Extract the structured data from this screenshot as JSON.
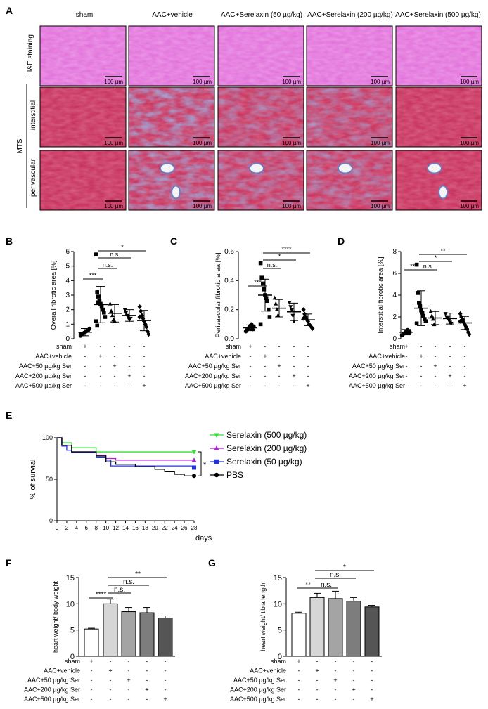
{
  "panel_a": {
    "label": "A",
    "columns": [
      "sham",
      "AAC+vehicle",
      "AAC+Serelaxin (50 µg/kg)",
      "AAC+Serelaxin (200 µg/kg)",
      "AAC+Serelaxin (500 µg/kg)"
    ],
    "row_he": "H&E staining",
    "row_group": "MTS",
    "row_interstitial": "interstitial",
    "row_perivascular": "perivascular",
    "scale_bar": "100 µm",
    "colors": {
      "he": "#e06ad8",
      "mts_red": "#c42a55",
      "mts_blue": "#5a86c8"
    }
  },
  "treatment_table": {
    "rows": [
      "sham",
      "AAC+vehicle",
      "AAC+50 µg/kg Ser",
      "AAC+200 µg/kg Ser",
      "AAC+500 µg/kg Ser"
    ],
    "marks": [
      [
        "+",
        "-",
        "-",
        "-",
        "-"
      ],
      [
        "-",
        "+",
        "-",
        "-",
        "-"
      ],
      [
        "-",
        "-",
        "+",
        "-",
        "-"
      ],
      [
        "-",
        "-",
        "-",
        "+",
        "-"
      ],
      [
        "-",
        "-",
        "-",
        "-",
        "+"
      ]
    ]
  },
  "chart_data": [
    {
      "panel": "B",
      "type": "scatter",
      "ylabel": "Overall fibrotic area [%]",
      "ylim": [
        0,
        6
      ],
      "yticks": [
        0,
        1,
        2,
        3,
        4,
        5,
        6
      ],
      "categories": [
        "sham",
        "AAC+vehicle",
        "AAC+50 µg/kg Ser",
        "AAC+200 µg/kg Ser",
        "AAC+500 µg/kg Ser"
      ],
      "marker_shapes": [
        "circle",
        "square",
        "triangle-up",
        "triangle-down",
        "diamond"
      ],
      "means": [
        0.45,
        2.35,
        1.75,
        1.6,
        1.25
      ],
      "sd": [
        0.25,
        1.25,
        0.6,
        0.4,
        0.7
      ],
      "points": [
        [
          0.2,
          0.3,
          0.35,
          0.4,
          0.45,
          0.5,
          0.55,
          0.6,
          0.7,
          0.3
        ],
        [
          5.8,
          3.2,
          2.9,
          2.6,
          2.4,
          2.2,
          2.0,
          1.8,
          1.5,
          1.2,
          0.9,
          2.5
        ],
        [
          2.4,
          1.9,
          1.6,
          1.3,
          1.2
        ],
        [
          2.0,
          1.8,
          1.6,
          1.5,
          1.3,
          1.4
        ],
        [
          2.2,
          1.9,
          1.6,
          1.4,
          1.2,
          1.0,
          0.8,
          0.5,
          0.3,
          1.5
        ]
      ],
      "significance": [
        {
          "from": 0,
          "to": 1,
          "label": "***"
        },
        {
          "from": 1,
          "to": 2,
          "label": "n.s."
        },
        {
          "from": 1,
          "to": 3,
          "label": "n.s."
        },
        {
          "from": 1,
          "to": 4,
          "label": "*"
        }
      ]
    },
    {
      "panel": "C",
      "type": "scatter",
      "ylabel": "Perivascular fibrotic area [%]",
      "ylim": [
        0,
        0.6
      ],
      "yticks": [
        0.0,
        0.2,
        0.4,
        0.6
      ],
      "categories": [
        "sham",
        "AAC+vehicle",
        "AAC+50 µg/kg Ser",
        "AAC+200 µg/kg Ser",
        "AAC+500 µg/kg Ser"
      ],
      "marker_shapes": [
        "circle",
        "square",
        "triangle-up",
        "triangle-down",
        "diamond"
      ],
      "means": [
        0.075,
        0.3,
        0.21,
        0.185,
        0.13
      ],
      "sd": [
        0.02,
        0.11,
        0.06,
        0.06,
        0.04
      ],
      "points": [
        [
          0.05,
          0.06,
          0.07,
          0.08,
          0.09,
          0.1,
          0.065,
          0.085
        ],
        [
          0.52,
          0.42,
          0.38,
          0.34,
          0.3,
          0.28,
          0.26,
          0.2,
          0.15,
          0.1
        ],
        [
          0.28,
          0.24,
          0.2,
          0.16
        ],
        [
          0.25,
          0.22,
          0.2,
          0.16,
          0.12
        ],
        [
          0.2,
          0.17,
          0.15,
          0.13,
          0.12,
          0.1,
          0.09,
          0.08,
          0.07,
          0.14
        ]
      ],
      "significance": [
        {
          "from": 0,
          "to": 1,
          "label": "***"
        },
        {
          "from": 1,
          "to": 2,
          "label": "n.s."
        },
        {
          "from": 1,
          "to": 3,
          "label": "*"
        },
        {
          "from": 1,
          "to": 4,
          "label": "****"
        }
      ]
    },
    {
      "panel": "D",
      "type": "scatter",
      "ylabel": "Interstitial fibrotic area [%]",
      "ylim": [
        0,
        8
      ],
      "yticks": [
        0,
        2,
        4,
        6,
        8
      ],
      "categories": [
        "sham",
        "AAC+vehicle",
        "AAC+50 µg/kg Ser",
        "AAC+200 µg/kg Ser",
        "AAC+500 µg/kg Ser"
      ],
      "marker_shapes": [
        "circle",
        "square",
        "triangle-up",
        "triangle-down",
        "diamond"
      ],
      "means": [
        0.6,
        2.8,
        1.9,
        1.85,
        1.45
      ],
      "sd": [
        0.25,
        1.6,
        0.6,
        0.5,
        0.6
      ],
      "points": [
        [
          0.3,
          0.4,
          0.5,
          0.6,
          0.7,
          0.8,
          0.5,
          0.6
        ],
        [
          6.8,
          4.2,
          3.3,
          3.0,
          2.6,
          2.4,
          2.1,
          1.8,
          1.6,
          1.4
        ],
        [
          2.5,
          2.1,
          1.8,
          1.3
        ],
        [
          2.3,
          2.0,
          1.9,
          1.7,
          1.5,
          1.4
        ],
        [
          2.3,
          2.0,
          1.8,
          1.5,
          1.3,
          1.1,
          0.9,
          0.6,
          0.4,
          1.6
        ]
      ],
      "significance": [
        {
          "from": 0,
          "to": 1,
          "label": "***"
        },
        {
          "from": 1,
          "to": 2,
          "label": "n.s."
        },
        {
          "from": 1,
          "to": 3,
          "label": "*"
        },
        {
          "from": 1,
          "to": 4,
          "label": "**"
        }
      ]
    },
    {
      "panel": "E",
      "type": "line",
      "ylabel": "% of survial",
      "xlabel": "days",
      "xlim": [
        0,
        28
      ],
      "ylim": [
        0,
        100
      ],
      "xticks": [
        0,
        2,
        4,
        6,
        8,
        10,
        12,
        14,
        16,
        18,
        20,
        22,
        24,
        26,
        28
      ],
      "yticks": [
        0,
        50,
        100
      ],
      "series": [
        {
          "name": "Serelaxin (500 µg/kg)",
          "color": "#33dd33",
          "marker": "triangle-down",
          "steps": [
            [
              0,
              100
            ],
            [
              1,
              94
            ],
            [
              3,
              88
            ],
            [
              8,
              83
            ],
            [
              28,
              83
            ]
          ]
        },
        {
          "name": "Serelaxin (200 µg/kg)",
          "color": "#aa22cc",
          "marker": "triangle-up",
          "steps": [
            [
              0,
              100
            ],
            [
              1,
              91
            ],
            [
              3,
              83
            ],
            [
              8,
              79
            ],
            [
              10,
              75
            ],
            [
              12,
              73
            ],
            [
              28,
              73
            ]
          ]
        },
        {
          "name": "Serelaxin (50 µg/kg)",
          "color": "#2233dd",
          "marker": "square",
          "steps": [
            [
              0,
              100
            ],
            [
              1,
              90
            ],
            [
              2,
              85
            ],
            [
              3,
              82
            ],
            [
              8,
              76
            ],
            [
              10,
              73
            ],
            [
              11,
              66
            ],
            [
              28,
              64
            ]
          ]
        },
        {
          "name": "PBS",
          "color": "#000000",
          "marker": "circle",
          "steps": [
            [
              0,
              100
            ],
            [
              1,
              91
            ],
            [
              3,
              83
            ],
            [
              8,
              78
            ],
            [
              10,
              71
            ],
            [
              12,
              68
            ],
            [
              16,
              65
            ],
            [
              20,
              62
            ],
            [
              22,
              59
            ],
            [
              24,
              56
            ],
            [
              26,
              54
            ],
            [
              28,
              54
            ]
          ]
        }
      ],
      "significance": "*"
    },
    {
      "panel": "F",
      "type": "bar",
      "ylabel": "heart weight/ body weight",
      "ylim": [
        0,
        15
      ],
      "yticks": [
        0,
        5,
        10,
        15
      ],
      "categories": [
        "sham",
        "AAC+vehicle",
        "AAC+50 µg/kg Ser",
        "AAC+200 µg/kg Ser",
        "AAC+500 µg/kg Ser"
      ],
      "values": [
        5.2,
        10.0,
        8.5,
        8.3,
        7.3
      ],
      "errors": [
        0.15,
        0.9,
        0.8,
        1.0,
        0.4
      ],
      "colors": [
        "#ffffff",
        "#d6d6d6",
        "#a4a4a4",
        "#7d7d7d",
        "#555555"
      ],
      "significance": [
        {
          "from": 0,
          "to": 1,
          "label": "****"
        },
        {
          "from": 1,
          "to": 2,
          "label": "n.s."
        },
        {
          "from": 1,
          "to": 3,
          "label": "n.s."
        },
        {
          "from": 1,
          "to": 4,
          "label": "**"
        }
      ]
    },
    {
      "panel": "G",
      "type": "bar",
      "ylabel": "heart weight/ tibia length",
      "ylim": [
        0,
        15
      ],
      "yticks": [
        0,
        5,
        10,
        15
      ],
      "categories": [
        "sham",
        "AAC+vehicle",
        "AAC+50 µg/kg Ser",
        "AAC+200 µg/kg Ser",
        "AAC+500 µg/kg Ser"
      ],
      "values": [
        8.2,
        11.2,
        11.0,
        10.5,
        9.4
      ],
      "errors": [
        0.2,
        0.8,
        1.4,
        0.7,
        0.3
      ],
      "colors": [
        "#ffffff",
        "#d6d6d6",
        "#a4a4a4",
        "#7d7d7d",
        "#555555"
      ],
      "significance": [
        {
          "from": 0,
          "to": 1,
          "label": "**"
        },
        {
          "from": 1,
          "to": 2,
          "label": "n.s."
        },
        {
          "from": 1,
          "to": 3,
          "label": "n.s."
        },
        {
          "from": 1,
          "to": 4,
          "label": "*"
        }
      ]
    }
  ]
}
